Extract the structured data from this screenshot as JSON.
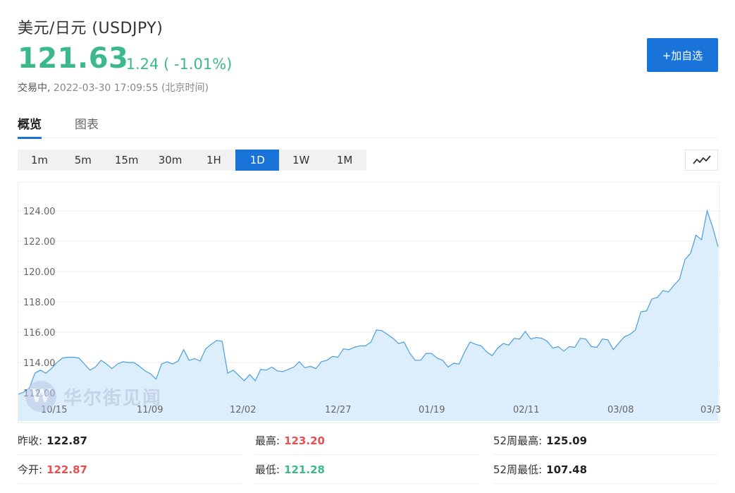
{
  "header": {
    "title": "美元/日元 (USDJPY)",
    "price": "121.63",
    "change": "-1.24 ( -1.01%)",
    "status": "交易中,",
    "timestamp": "2022-03-30 17:09:55 (北京时间)",
    "add_button": "+加自选"
  },
  "tabs": [
    {
      "label": "概览",
      "active": true
    },
    {
      "label": "图表",
      "active": false
    }
  ],
  "periods": [
    {
      "label": "1m",
      "active": false
    },
    {
      "label": "5m",
      "active": false
    },
    {
      "label": "15m",
      "active": false
    },
    {
      "label": "30m",
      "active": false
    },
    {
      "label": "1H",
      "active": false
    },
    {
      "label": "1D",
      "active": true
    },
    {
      "label": "1W",
      "active": false
    },
    {
      "label": "1M",
      "active": false
    }
  ],
  "chart_type_icon": "line-chart-icon",
  "watermark": {
    "logo_letter": "W",
    "text": "华尔街见闻"
  },
  "chart_data": {
    "type": "area",
    "title": "",
    "xlabel": "",
    "ylabel": "",
    "ylim": [
      112,
      125
    ],
    "y_ticks": [
      "112.00",
      "114.00",
      "116.00",
      "118.00",
      "120.00",
      "122.00",
      "124.00"
    ],
    "x_ticks": [
      "10/15",
      "11/09",
      "12/02",
      "12/27",
      "01/19",
      "02/11",
      "03/08",
      "03/3"
    ],
    "grid": true,
    "colors": {
      "line": "#4a9ee0",
      "fill": "#dcedfc"
    },
    "series": [
      {
        "values": [
          111.9,
          112.05,
          112.3,
          113.3,
          113.5,
          113.3,
          113.6,
          114.0,
          114.3,
          114.35,
          114.35,
          114.3,
          113.9,
          113.5,
          113.7,
          114.15,
          113.9,
          113.6,
          113.9,
          114.05,
          114.0,
          114.0,
          113.75,
          113.45,
          113.25,
          112.9,
          113.9,
          114.05,
          113.9,
          114.1,
          114.85,
          114.15,
          114.25,
          114.1,
          114.9,
          115.2,
          115.45,
          115.4,
          113.3,
          113.5,
          113.15,
          112.8,
          113.2,
          112.8,
          113.55,
          113.5,
          113.7,
          113.45,
          113.4,
          113.55,
          113.7,
          114.05,
          113.65,
          113.75,
          113.6,
          114.05,
          114.15,
          114.4,
          114.35,
          114.9,
          114.85,
          115.0,
          115.1,
          115.1,
          115.35,
          116.15,
          116.1,
          115.85,
          115.6,
          115.25,
          115.35,
          114.65,
          114.15,
          114.15,
          114.6,
          114.6,
          114.3,
          114.15,
          113.7,
          113.95,
          113.9,
          114.7,
          115.35,
          115.2,
          115.1,
          114.7,
          114.45,
          114.95,
          115.25,
          115.15,
          115.6,
          115.55,
          116.05,
          115.55,
          115.65,
          115.6,
          115.4,
          114.95,
          115.05,
          114.75,
          115.05,
          115.0,
          115.6,
          115.55,
          115.05,
          115.0,
          115.55,
          115.5,
          114.85,
          115.3,
          115.7,
          115.85,
          116.15,
          117.35,
          117.4,
          118.2,
          118.3,
          118.75,
          118.65,
          119.1,
          119.5,
          120.8,
          121.2,
          122.4,
          122.1,
          124.0,
          122.95,
          121.63
        ]
      }
    ]
  },
  "stats": {
    "prev_close_label": "昨收:",
    "prev_close": "122.87",
    "open_label": "今开:",
    "open": "122.87",
    "high_label": "最高:",
    "high": "123.20",
    "low_label": "最低:",
    "low": "121.28",
    "high52_label": "52周最高:",
    "high52": "125.09",
    "low52_label": "52周最低:",
    "low52": "107.48"
  }
}
